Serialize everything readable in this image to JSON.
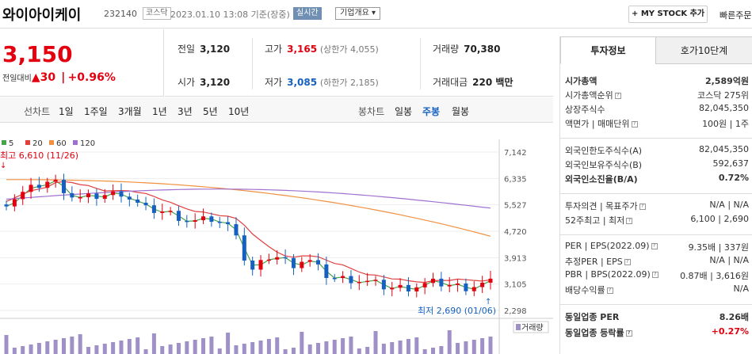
{
  "header": {
    "title": "와이아이케이",
    "code": "232140",
    "market": "코스닥",
    "date": "2023.01.10 13:08 기준(장중)",
    "realtime": "실시간",
    "corp_info": "기업개요",
    "my_stock": "+ MY STOCK 추가",
    "quick_order": "빠른주문"
  },
  "price": {
    "current": "3,150",
    "change_label": "전일대비",
    "change_arrow": "▲",
    "change_value": "30",
    "change_pct": "+0.96%"
  },
  "stats": {
    "prev_label": "전일",
    "prev": "3,120",
    "high_label": "고가",
    "high": "3,165",
    "high_sub": "(상한가 4,055)",
    "volume_label": "거래량",
    "volume": "70,380",
    "open_label": "시가",
    "open": "3,120",
    "low_label": "저가",
    "low": "3,085",
    "low_sub": "(하한가 2,185)",
    "amount_label": "거래대금",
    "amount": "220 백만"
  },
  "tabs": {
    "line_label": "선차트",
    "line": [
      "1일",
      "1주일",
      "3개월",
      "1년",
      "3년",
      "5년",
      "10년"
    ],
    "candle_label": "봉차트",
    "candle": [
      "일봉",
      "주봉",
      "월봉"
    ],
    "selected": "주봉"
  },
  "chart_data": {
    "type": "candlestick",
    "title": "",
    "x_count": 60,
    "legend": [
      {
        "name": "5",
        "color": "#4aa34a"
      },
      {
        "name": "20",
        "color": "#e04040"
      },
      {
        "name": "60",
        "color": "#f09040"
      },
      {
        "name": "120",
        "color": "#a070d0"
      }
    ],
    "ylim": [
      2298,
      7142
    ],
    "yticks": [
      "7,142",
      "6,335",
      "5,527",
      "4,720",
      "3,913",
      "3,105",
      "2,298"
    ],
    "max_label": "최고 6,610 (11/26)",
    "min_label": "최저 2,690 (01/06)",
    "volume_label": "거래량"
  },
  "side": {
    "tab_invest": "투자정보",
    "tab_orderbook": "호가10단계",
    "rows": [
      {
        "l": "시가총액",
        "v": "2,589억원"
      },
      {
        "l": "시가총액순위",
        "v": "코스닥 275위"
      },
      {
        "l": "상장주식수",
        "v": "82,045,350"
      },
      {
        "l": "액면가 | 매매단위",
        "v": "100원 | 1주"
      },
      {
        "l": "외국인한도주식수(A)",
        "v": "82,045,350"
      },
      {
        "l": "외국인보유주식수(B)",
        "v": "592,637"
      },
      {
        "l": "외국인소진율(B/A)",
        "v": "0.72%"
      },
      {
        "l": "투자의견 | 목표주가",
        "v": "N/A | N/A"
      },
      {
        "l": "52주최고 | 최저",
        "v": "6,100 | 2,690"
      },
      {
        "l": "PER | EPS(2022.09)",
        "v": "9.35배 | 337원"
      },
      {
        "l": "추정PER | EPS",
        "v": "N/A | N/A"
      },
      {
        "l": "PBR | BPS(2022.09)",
        "v": "0.87배 | 3,616원"
      },
      {
        "l": "배당수익률",
        "v": "N/A"
      },
      {
        "l": "동일업종 PER",
        "v": "8.26배"
      },
      {
        "l": "동일업종 등락률",
        "v": "+0.27%"
      }
    ]
  }
}
